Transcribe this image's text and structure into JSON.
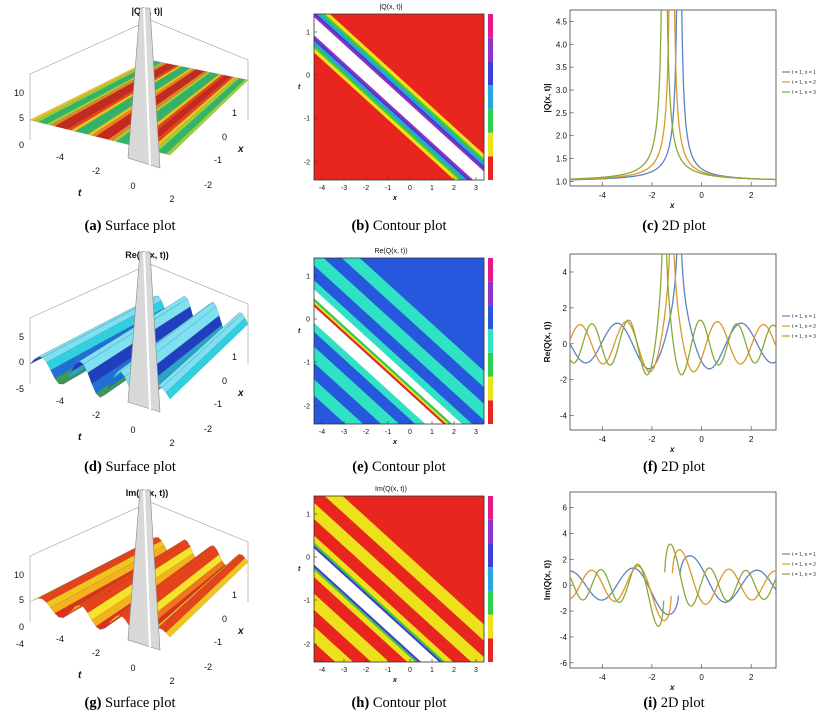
{
  "figure": {
    "rows": [
      {
        "surface": {
          "title": "|Q(x, t)|",
          "zticks": [
            "10",
            "5",
            "0"
          ],
          "tticks": [
            "-4",
            "-2",
            "0",
            "2"
          ],
          "xticks": [
            "-2",
            "-1",
            "0",
            "1"
          ],
          "tlabel": "t",
          "xlabel": "x",
          "palette": "rainbow"
        },
        "contour": {
          "title": "|Q(x, t)|",
          "xticks": [
            "-4",
            "-3",
            "-2",
            "-1",
            "0",
            "1",
            "2",
            "3"
          ],
          "yticks": [
            "-2",
            "-1",
            "0",
            "1"
          ],
          "xlabel": "x",
          "ylabel": "t",
          "bands": [
            "#e8261f",
            "#e8261f",
            "#ece11a",
            "#2fce4c",
            "#27a6dc",
            "#3a3fd8",
            "#9033c8",
            "#ffffff"
          ],
          "legend": [
            "#e8261f",
            "#ece11a",
            "#2fce4c",
            "#27a6dc",
            "#3a3fd8",
            "#9033c8",
            "#e21a8c"
          ]
        },
        "plot2d": {
          "ylabel": "|Q(x, t)|",
          "xlabel": "x",
          "yticks": [
            "1.0",
            "1.5",
            "2.0",
            "2.5",
            "3.0",
            "3.5",
            "4.0",
            "4.5"
          ],
          "xticks": [
            "-4",
            "-2",
            "0",
            "2"
          ],
          "ylim": [
            0.9,
            4.75
          ],
          "kind": "abs"
        }
      },
      {
        "surface": {
          "title": "Re(Q(x, t))",
          "zticks": [
            "5",
            "0",
            "-5"
          ],
          "tticks": [
            "-4",
            "-2",
            "0",
            "2"
          ],
          "xticks": [
            "-2",
            "-1",
            "0",
            "1"
          ],
          "tlabel": "t",
          "xlabel": "x",
          "palette": "blue"
        },
        "contour": {
          "title": "Re(Q(x, t))",
          "xticks": [
            "-4",
            "-3",
            "-2",
            "-1",
            "0",
            "1",
            "2",
            "3"
          ],
          "yticks": [
            "-2",
            "-1",
            "0",
            "1"
          ],
          "xlabel": "x",
          "ylabel": "t",
          "bands": [
            "#2757dd",
            "#2757dd",
            "#2757dd",
            "#2fe2c4",
            "#2fe2c4",
            "#2757dd",
            "#2fe2c4",
            "#2fe2c4"
          ],
          "legend": [
            "#e8261f",
            "#ece11a",
            "#2fce4c",
            "#2fe2c4",
            "#2757dd",
            "#9033c8",
            "#e21a8c"
          ]
        },
        "plot2d": {
          "ylabel": "Re(Q(x, t))",
          "xlabel": "x",
          "yticks": [
            "-4",
            "-2",
            "0",
            "2",
            "4"
          ],
          "xticks": [
            "-4",
            "-2",
            "0",
            "2"
          ],
          "ylim": [
            -4.8,
            5.0
          ],
          "kind": "re"
        }
      },
      {
        "surface": {
          "title": "Im(Q(x, t))",
          "zticks": [
            "10",
            "5",
            "0",
            "-4"
          ],
          "tticks": [
            "-4",
            "-2",
            "0",
            "2"
          ],
          "xticks": [
            "-2",
            "-1",
            "0",
            "1"
          ],
          "tlabel": "t",
          "xlabel": "x",
          "palette": "warm"
        },
        "contour": {
          "title": "Im(Q(x, t))",
          "xticks": [
            "-4",
            "-3",
            "-2",
            "-1",
            "0",
            "1",
            "2",
            "3"
          ],
          "yticks": [
            "-2",
            "-1",
            "0",
            "1"
          ],
          "xlabel": "x",
          "ylabel": "t",
          "bands": [
            "#e8261f",
            "#ece11a",
            "#e8261f",
            "#ece11a",
            "#e8261f",
            "#ece11a",
            "#e8261f",
            "#ece11a"
          ],
          "legend": [
            "#e8261f",
            "#ece11a",
            "#2fce4c",
            "#27a6dc",
            "#3a3fd8",
            "#9033c8",
            "#e21a8c"
          ]
        },
        "plot2d": {
          "ylabel": "Im(Q(x, t))",
          "xlabel": "x",
          "yticks": [
            "-6",
            "-4",
            "-2",
            "0",
            "2",
            "4",
            "6"
          ],
          "xticks": [
            "-4",
            "-2",
            "0",
            "2"
          ],
          "ylim": [
            -6.4,
            7.2
          ],
          "kind": "im"
        }
      }
    ],
    "captions": [
      {
        "label": "(a)",
        "text": "Surface plot"
      },
      {
        "label": "(b)",
        "text": "Contour plot"
      },
      {
        "label": "(c)",
        "text": "2D plot"
      },
      {
        "label": "(d)",
        "text": "Surface plot"
      },
      {
        "label": "(e)",
        "text": "Contour plot"
      },
      {
        "label": "(f)",
        "text": "2D plot"
      },
      {
        "label": "(g)",
        "text": "Surface plot"
      },
      {
        "label": "(h)",
        "text": "Contour plot"
      },
      {
        "label": "(i)",
        "text": "2D plot"
      }
    ]
  },
  "chart_data": [
    {
      "type": "line",
      "title": "|Q(x, t)|",
      "xlabel": "x",
      "ylabel": "|Q(x, t)|",
      "xlim": [
        -5.3,
        3.0
      ],
      "ylim": [
        0.9,
        4.75
      ],
      "series": [
        {
          "name": "t = 1, n = 1",
          "color": "#5b84c4",
          "pole": -0.9
        },
        {
          "name": "t = 1, n = 2",
          "color": "#d99a2b",
          "pole": -1.2
        },
        {
          "name": "t = 1, n = 3",
          "color": "#8ba83a",
          "pole": -1.5
        }
      ]
    },
    {
      "type": "line",
      "title": "Re(Q(x, t))",
      "xlabel": "x",
      "ylabel": "Re(Q(x, t))",
      "xlim": [
        -5.3,
        3.0
      ],
      "ylim": [
        -4.8,
        5.0
      ],
      "series": [
        {
          "name": "t = 1, n = 1",
          "color": "#5b84c4"
        },
        {
          "name": "t = 1, n = 2",
          "color": "#d99a2b"
        },
        {
          "name": "t = 1, n = 3",
          "color": "#8ba83a"
        }
      ]
    },
    {
      "type": "line",
      "title": "Im(Q(x, t))",
      "xlabel": "x",
      "ylabel": "Im(Q(x, t))",
      "xlim": [
        -5.3,
        3.0
      ],
      "ylim": [
        -6.4,
        7.2
      ],
      "series": [
        {
          "name": "t = 1, n = 1",
          "color": "#5b84c4"
        },
        {
          "name": "t = 1, n = 2",
          "color": "#d99a2b"
        },
        {
          "name": "t = 1, n = 3",
          "color": "#8ba83a"
        }
      ]
    }
  ]
}
